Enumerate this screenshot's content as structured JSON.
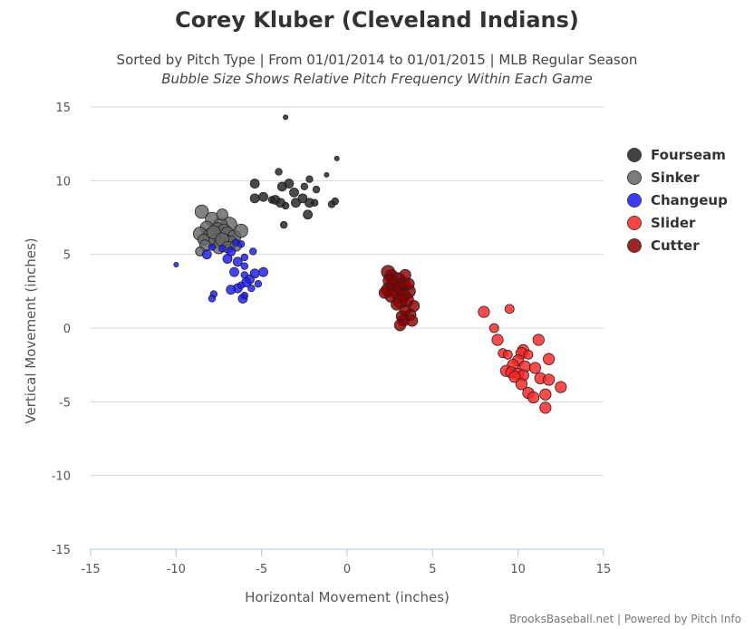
{
  "chart_data": {
    "type": "bubble-scatter",
    "title": "Corey Kluber (Cleveland Indians)",
    "subtitle": "Sorted by Pitch Type | From 01/01/2014 to 01/01/2015 | MLB Regular Season",
    "subtitle2": "Bubble Size Shows Relative Pitch Frequency Within Each Game",
    "xlabel": "Horizontal Movement (inches)",
    "ylabel": "Vertical Movement (inches)",
    "xlim": [
      -15,
      15
    ],
    "ylim": [
      -15,
      15
    ],
    "xticks": [
      -15,
      -10,
      -5,
      0,
      5,
      10,
      15
    ],
    "yticks": [
      -15,
      -10,
      -5,
      0,
      5,
      10,
      15
    ],
    "credits": "BrooksBaseball.net | Powered by Pitch Info",
    "legend_position": "right",
    "series": [
      {
        "name": "Fourseam",
        "color": "#222222",
        "points": [
          [
            -3.6,
            14.3,
            1
          ],
          [
            -0.6,
            11.5,
            1
          ],
          [
            -4.0,
            10.6,
            2
          ],
          [
            -1.2,
            10.4,
            1
          ],
          [
            -2.2,
            10.1,
            2
          ],
          [
            -5.4,
            9.8,
            3
          ],
          [
            -3.8,
            9.6,
            3
          ],
          [
            -3.4,
            9.8,
            3
          ],
          [
            -2.5,
            9.6,
            2
          ],
          [
            -1.8,
            9.4,
            2
          ],
          [
            -3.1,
            9.2,
            3
          ],
          [
            -4.9,
            8.9,
            3
          ],
          [
            -5.4,
            8.8,
            3
          ],
          [
            -4.2,
            8.7,
            3
          ],
          [
            -3.9,
            8.5,
            3
          ],
          [
            -3.0,
            8.5,
            3
          ],
          [
            -2.6,
            8.8,
            3
          ],
          [
            -2.2,
            8.5,
            3
          ],
          [
            -1.9,
            8.5,
            2
          ],
          [
            -0.7,
            8.6,
            2
          ],
          [
            -0.9,
            8.4,
            2
          ],
          [
            -3.6,
            8.3,
            2
          ],
          [
            -2.3,
            7.7,
            3
          ],
          [
            -3.7,
            7.0,
            2
          ],
          [
            -4.4,
            8.7,
            2
          ]
        ]
      },
      {
        "name": "Sinker",
        "color": "#666666",
        "points": [
          [
            -8.5,
            7.9,
            5
          ],
          [
            -7.3,
            7.7,
            4
          ],
          [
            -7.9,
            7.4,
            5
          ],
          [
            -7.4,
            7.0,
            5
          ],
          [
            -8.2,
            6.8,
            5
          ],
          [
            -7.6,
            6.7,
            5
          ],
          [
            -7.2,
            6.6,
            5
          ],
          [
            -6.9,
            7.0,
            6
          ],
          [
            -8.6,
            6.4,
            5
          ],
          [
            -8.0,
            6.3,
            5
          ],
          [
            -7.5,
            6.2,
            6
          ],
          [
            -7.0,
            6.4,
            5
          ],
          [
            -6.6,
            6.2,
            5
          ],
          [
            -6.2,
            6.6,
            5
          ],
          [
            -8.4,
            6.0,
            4
          ],
          [
            -7.7,
            5.9,
            5
          ],
          [
            -7.1,
            5.9,
            5
          ],
          [
            -6.8,
            5.8,
            5
          ],
          [
            -8.3,
            5.6,
            4
          ],
          [
            -7.5,
            5.5,
            5
          ],
          [
            -7.0,
            5.5,
            4
          ],
          [
            -6.5,
            5.6,
            4
          ],
          [
            -7.8,
            6.5,
            5
          ],
          [
            -7.3,
            6.0,
            5
          ],
          [
            -8.6,
            5.2,
            3
          ]
        ]
      },
      {
        "name": "Changeup",
        "color": "#1a1aff",
        "points": [
          [
            -10.0,
            4.3,
            1
          ],
          [
            -8.2,
            5.0,
            3
          ],
          [
            -7.9,
            5.5,
            2
          ],
          [
            -7.3,
            5.4,
            2
          ],
          [
            -6.5,
            5.8,
            2
          ],
          [
            -6.2,
            5.7,
            2
          ],
          [
            -6.8,
            5.2,
            3
          ],
          [
            -6.0,
            4.8,
            2
          ],
          [
            -7.0,
            4.7,
            3
          ],
          [
            -6.4,
            4.5,
            3
          ],
          [
            -5.5,
            5.2,
            2
          ],
          [
            -6.0,
            4.2,
            2
          ],
          [
            -6.6,
            3.8,
            3
          ],
          [
            -6.0,
            3.6,
            2
          ],
          [
            -5.4,
            3.7,
            3
          ],
          [
            -4.9,
            3.8,
            3
          ],
          [
            -5.7,
            3.3,
            3
          ],
          [
            -5.9,
            3.1,
            3
          ],
          [
            -6.2,
            2.9,
            2
          ],
          [
            -5.6,
            2.7,
            2
          ],
          [
            -5.2,
            3.0,
            2
          ],
          [
            -6.4,
            2.7,
            3
          ],
          [
            -6.8,
            2.6,
            3
          ],
          [
            -7.8,
            2.3,
            2
          ],
          [
            -6.0,
            2.2,
            2
          ],
          [
            -7.9,
            2.0,
            2
          ],
          [
            -6.1,
            2.0,
            3
          ]
        ]
      },
      {
        "name": "Slider",
        "color": "#ff2222",
        "points": [
          [
            8.0,
            1.1,
            4
          ],
          [
            9.5,
            1.3,
            3
          ],
          [
            8.6,
            0.0,
            3
          ],
          [
            8.8,
            -0.8,
            4
          ],
          [
            11.2,
            -0.8,
            4
          ],
          [
            10.3,
            -1.5,
            4
          ],
          [
            10.2,
            -1.7,
            4
          ],
          [
            9.1,
            -1.7,
            3
          ],
          [
            10.6,
            -1.8,
            3
          ],
          [
            9.4,
            -1.8,
            3
          ],
          [
            11.8,
            -2.1,
            4
          ],
          [
            10.0,
            -2.2,
            4
          ],
          [
            9.7,
            -2.5,
            4
          ],
          [
            10.4,
            -2.6,
            4
          ],
          [
            11.0,
            -2.7,
            4
          ],
          [
            9.3,
            -2.9,
            4
          ],
          [
            9.6,
            -3.0,
            4
          ],
          [
            10.0,
            -3.1,
            4
          ],
          [
            10.3,
            -3.2,
            4
          ],
          [
            9.8,
            -3.3,
            4
          ],
          [
            11.3,
            -3.4,
            4
          ],
          [
            11.8,
            -3.5,
            4
          ],
          [
            10.2,
            -3.8,
            4
          ],
          [
            12.5,
            -4.0,
            4
          ],
          [
            10.6,
            -4.4,
            4
          ],
          [
            11.6,
            -4.5,
            4
          ],
          [
            10.9,
            -4.7,
            4
          ],
          [
            11.6,
            -5.4,
            4
          ]
        ]
      },
      {
        "name": "Cutter",
        "color": "#8b0000",
        "points": [
          [
            2.4,
            3.8,
            5
          ],
          [
            2.6,
            3.5,
            5
          ],
          [
            3.4,
            3.6,
            4
          ],
          [
            2.5,
            3.2,
            5
          ],
          [
            3.0,
            3.3,
            5
          ],
          [
            3.3,
            3.0,
            5
          ],
          [
            2.7,
            2.9,
            5
          ],
          [
            3.1,
            2.7,
            5
          ],
          [
            2.4,
            2.6,
            5
          ],
          [
            3.6,
            2.5,
            5
          ],
          [
            2.9,
            2.4,
            5
          ],
          [
            3.3,
            2.2,
            5
          ],
          [
            2.6,
            2.2,
            5
          ],
          [
            3.5,
            1.9,
            5
          ],
          [
            3.1,
            1.8,
            5
          ],
          [
            2.9,
            1.6,
            4
          ],
          [
            3.9,
            1.5,
            4
          ],
          [
            3.4,
            1.2,
            4
          ],
          [
            3.7,
            0.9,
            4
          ],
          [
            3.2,
            0.8,
            4
          ],
          [
            3.3,
            0.5,
            4
          ],
          [
            3.8,
            0.5,
            4
          ],
          [
            3.1,
            0.2,
            4
          ],
          [
            2.2,
            2.4,
            4
          ],
          [
            3.6,
            3.0,
            4
          ]
        ]
      }
    ]
  }
}
